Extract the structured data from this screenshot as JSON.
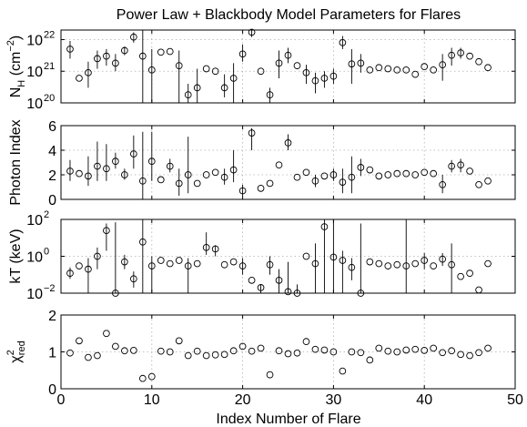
{
  "chart_data": {
    "title": "Power Law + Blackbody Model Parameters for Flares",
    "xlabel": "Index Number of Flare",
    "xlim": [
      0,
      50
    ],
    "xticks": [
      0,
      10,
      20,
      30,
      40,
      50
    ],
    "panels": [
      {
        "id": "nh",
        "type": "scatter",
        "ylabel": "N_H (cm^-2)",
        "ylabel_parts": {
          "main": "N",
          "sub": "H",
          "unit": " (cm",
          "sup": "−2",
          "close": ")"
        },
        "yscale": "log",
        "ylim": [
          1e+20,
          2e+22
        ],
        "ytick_labels": [
          {
            "value": 1e+20,
            "base": "10",
            "exp": "20"
          },
          {
            "value": 1e+21,
            "base": "10",
            "exp": "21"
          },
          {
            "value": 1e+22,
            "base": "10",
            "exp": "22"
          }
        ],
        "points": [
          {
            "x": 1,
            "y": 5e+21,
            "lo": 2.5e+21,
            "hi": 9e+21
          },
          {
            "x": 2,
            "y": 6e+20
          },
          {
            "x": 3,
            "y": 9e+20,
            "lo": 3e+20,
            "hi": 2e+21
          },
          {
            "x": 4,
            "y": 2.5e+21,
            "lo": 1.2e+21,
            "hi": 4.5e+21
          },
          {
            "x": 5,
            "y": 3e+21,
            "lo": 1.5e+21,
            "hi": 5e+21
          },
          {
            "x": 6,
            "y": 1.8e+21,
            "lo": 1e+21,
            "hi": 3.5e+21
          },
          {
            "x": 7,
            "y": 4.5e+21,
            "lo": 3.2e+21,
            "hi": 6e+21
          },
          {
            "x": 8,
            "y": 1.2e+22,
            "lo": 8e+21,
            "hi": 1.7e+22
          },
          {
            "x": 9,
            "y": 3e+21,
            "lo": 1e+20,
            "hi": 2e+22
          },
          {
            "x": 10,
            "y": 1.1e+21,
            "lo": 1e+20,
            "hi": 5e+21
          },
          {
            "x": 11,
            "y": 4e+21
          },
          {
            "x": 12,
            "y": 4.2e+21
          },
          {
            "x": 13,
            "y": 1.5e+21,
            "lo": 1e+20,
            "hi": 4.5e+21
          },
          {
            "x": 14,
            "y": 1.8e+20,
            "lo": 1e+20,
            "hi": 4e+20
          },
          {
            "x": 15,
            "y": 3e+20,
            "lo": 1e+20,
            "hi": 1.2e+21
          },
          {
            "x": 16,
            "y": 1.2e+21
          },
          {
            "x": 17,
            "y": 1e+21
          },
          {
            "x": 18,
            "y": 3e+20,
            "lo": 1.5e+20,
            "hi": 8e+20
          },
          {
            "x": 19,
            "y": 6e+20,
            "lo": 1e+20,
            "hi": 1.8e+21
          },
          {
            "x": 20,
            "y": 3.5e+21,
            "lo": 2e+21,
            "hi": 7e+21
          },
          {
            "x": 21,
            "y": 1.7e+22,
            "lo": 1.2e+22,
            "hi": 2e+22
          },
          {
            "x": 22,
            "y": 1e+21
          },
          {
            "x": 23,
            "y": 1.8e+20,
            "lo": 1e+20,
            "hi": 3e+20
          },
          {
            "x": 24,
            "y": 1.8e+21,
            "lo": 6e+20,
            "hi": 4.5e+21
          },
          {
            "x": 25,
            "y": 3.2e+21,
            "lo": 1.8e+21,
            "hi": 5.5e+21
          },
          {
            "x": 26,
            "y": 1.5e+21
          },
          {
            "x": 27,
            "y": 9e+20,
            "lo": 4e+20,
            "hi": 1.6e+21
          },
          {
            "x": 28,
            "y": 5e+20,
            "lo": 2e+20,
            "hi": 9e+20
          },
          {
            "x": 29,
            "y": 6e+20,
            "lo": 3e+20,
            "hi": 1e+21
          },
          {
            "x": 30,
            "y": 7e+20,
            "lo": 4e+20,
            "hi": 1.2e+21
          },
          {
            "x": 31,
            "y": 8e+21,
            "lo": 5e+21,
            "hi": 1.3e+22
          },
          {
            "x": 32,
            "y": 1.7e+21,
            "lo": 4e+20,
            "hi": 5e+21
          },
          {
            "x": 33,
            "y": 1.8e+21,
            "lo": 9e+20,
            "hi": 3.5e+21
          },
          {
            "x": 34,
            "y": 1.1e+21
          },
          {
            "x": 35,
            "y": 1.3e+21
          },
          {
            "x": 36,
            "y": 1.2e+21
          },
          {
            "x": 37,
            "y": 1.1e+21
          },
          {
            "x": 38,
            "y": 1.1e+21
          },
          {
            "x": 39,
            "y": 8e+20
          },
          {
            "x": 40,
            "y": 1.4e+21
          },
          {
            "x": 41,
            "y": 1.1e+21
          },
          {
            "x": 42,
            "y": 1.6e+21,
            "lo": 5e+20,
            "hi": 3.5e+21
          },
          {
            "x": 43,
            "y": 3.2e+21,
            "lo": 1.5e+21,
            "hi": 5.5e+21
          },
          {
            "x": 44,
            "y": 3.8e+21,
            "lo": 2.5e+21,
            "hi": 5.5e+21
          },
          {
            "x": 45,
            "y": 3e+21
          },
          {
            "x": 46,
            "y": 2e+21
          },
          {
            "x": 47,
            "y": 1.3e+21
          }
        ]
      },
      {
        "id": "photon_index",
        "type": "scatter",
        "ylabel": "Photon Index",
        "yscale": "linear",
        "ylim": [
          0,
          6
        ],
        "ytick_labels": [
          {
            "value": 0,
            "base": "0"
          },
          {
            "value": 2,
            "base": "2"
          },
          {
            "value": 4,
            "base": "4"
          },
          {
            "value": 6,
            "base": "6"
          }
        ],
        "points": [
          {
            "x": 1,
            "y": 2.3,
            "lo": 1.5,
            "hi": 3.2
          },
          {
            "x": 2,
            "y": 2.1
          },
          {
            "x": 3,
            "y": 1.9,
            "lo": 1.1,
            "hi": 3.5
          },
          {
            "x": 4,
            "y": 2.7,
            "lo": 1.5,
            "hi": 4.7
          },
          {
            "x": 5,
            "y": 2.5,
            "lo": 1.5,
            "hi": 4.5
          },
          {
            "x": 6,
            "y": 3.1,
            "lo": 2.5,
            "hi": 3.8
          },
          {
            "x": 7,
            "y": 2,
            "lo": 1.6,
            "hi": 2.5
          },
          {
            "x": 8,
            "y": 3.7,
            "lo": 2.5,
            "hi": 5.2
          },
          {
            "x": 9,
            "y": 1.5,
            "lo": 0,
            "hi": 5.5
          },
          {
            "x": 10,
            "y": 3.1,
            "lo": 1.5,
            "hi": 5.5
          },
          {
            "x": 11,
            "y": 1.6
          },
          {
            "x": 12,
            "y": 2.7,
            "lo": 2.2,
            "hi": 3.3
          },
          {
            "x": 13,
            "y": 1.3,
            "lo": 0.3,
            "hi": 2.5
          },
          {
            "x": 14,
            "y": 2,
            "lo": 0.5,
            "hi": 5.1
          },
          {
            "x": 15,
            "y": 1.3
          },
          {
            "x": 16,
            "y": 2
          },
          {
            "x": 17,
            "y": 2.2
          },
          {
            "x": 18,
            "y": 1.8,
            "lo": 1.2,
            "hi": 2.5
          },
          {
            "x": 19,
            "y": 2.4,
            "lo": 1.4,
            "hi": 4
          },
          {
            "x": 20,
            "y": 0.7,
            "lo": 0.3,
            "hi": 1.2
          },
          {
            "x": 21,
            "y": 5.4,
            "lo": 4,
            "hi": 5.8
          },
          {
            "x": 22,
            "y": 0.9
          },
          {
            "x": 23,
            "y": 1.3
          },
          {
            "x": 24,
            "y": 2.8
          },
          {
            "x": 25,
            "y": 4.6,
            "lo": 4,
            "hi": 5.3
          },
          {
            "x": 26,
            "y": 1.8
          },
          {
            "x": 27,
            "y": 2.2
          },
          {
            "x": 28,
            "y": 1.5,
            "lo": 1,
            "hi": 2
          },
          {
            "x": 29,
            "y": 1.9
          },
          {
            "x": 30,
            "y": 2,
            "lo": 1.5,
            "hi": 2.5
          },
          {
            "x": 31,
            "y": 1.4,
            "lo": 0.5,
            "hi": 2.5
          },
          {
            "x": 32,
            "y": 1.8,
            "lo": 0.5,
            "hi": 3.5
          },
          {
            "x": 33,
            "y": 2.6,
            "lo": 1.9,
            "hi": 3.3
          },
          {
            "x": 34,
            "y": 2.4
          },
          {
            "x": 35,
            "y": 1.9
          },
          {
            "x": 36,
            "y": 2
          },
          {
            "x": 37,
            "y": 2.1
          },
          {
            "x": 38,
            "y": 2.1
          },
          {
            "x": 39,
            "y": 2
          },
          {
            "x": 40,
            "y": 2.2
          },
          {
            "x": 41,
            "y": 2.1
          },
          {
            "x": 42,
            "y": 1.2,
            "lo": 0.5,
            "hi": 2
          },
          {
            "x": 43,
            "y": 2.7,
            "lo": 2.2,
            "hi": 3.2
          },
          {
            "x": 44,
            "y": 2.8,
            "lo": 2.2,
            "hi": 3.3
          },
          {
            "x": 45,
            "y": 2.3
          },
          {
            "x": 46,
            "y": 1.2
          },
          {
            "x": 47,
            "y": 1.5
          }
        ]
      },
      {
        "id": "kt",
        "type": "scatter",
        "ylabel": "kT (keV)",
        "yscale": "log",
        "ylim": [
          0.01,
          100
        ],
        "ytick_labels": [
          {
            "value": 0.01,
            "base": "10",
            "exp": "−2"
          },
          {
            "value": 1,
            "base": "10",
            "exp": "0"
          },
          {
            "value": 100,
            "base": "10",
            "exp": "2"
          }
        ],
        "points": [
          {
            "x": 1,
            "y": 0.12,
            "lo": 0.06,
            "hi": 0.25
          },
          {
            "x": 2,
            "y": 0.3
          },
          {
            "x": 3,
            "y": 0.2,
            "lo": 0.01,
            "hi": 0.8
          },
          {
            "x": 4,
            "y": 1,
            "lo": 0.2,
            "hi": 3
          },
          {
            "x": 5,
            "y": 25,
            "lo": 2,
            "hi": 60
          },
          {
            "x": 6,
            "y": 0.01,
            "lo": 0.01,
            "hi": 70
          },
          {
            "x": 7,
            "y": 0.5,
            "lo": 0.2,
            "hi": 1.2
          },
          {
            "x": 8,
            "y": 0.06,
            "lo": 0.02,
            "hi": 0.15
          },
          {
            "x": 9,
            "y": 6,
            "lo": 0.01,
            "hi": 100
          },
          {
            "x": 10,
            "y": 0.3,
            "lo": 0.01,
            "hi": 1
          },
          {
            "x": 11,
            "y": 0.6
          },
          {
            "x": 12,
            "y": 0.4
          },
          {
            "x": 13,
            "y": 0.6
          },
          {
            "x": 14,
            "y": 0.3,
            "lo": 0.01,
            "hi": 0.8
          },
          {
            "x": 15,
            "y": 0.4
          },
          {
            "x": 16,
            "y": 3,
            "lo": 1.2,
            "hi": 20
          },
          {
            "x": 17,
            "y": 2.5,
            "lo": 1,
            "hi": 4
          },
          {
            "x": 18,
            "y": 0.35
          },
          {
            "x": 19,
            "y": 0.5
          },
          {
            "x": 20,
            "y": 0.3,
            "lo": 0.1,
            "hi": 0.8
          },
          {
            "x": 21,
            "y": 0.05
          },
          {
            "x": 22,
            "y": 0.02,
            "lo": 0.01,
            "hi": 0.03
          },
          {
            "x": 23,
            "y": 0.35,
            "lo": 0.1,
            "hi": 1
          },
          {
            "x": 24,
            "y": 0.05,
            "lo": 0.01,
            "hi": 0.2
          },
          {
            "x": 25,
            "y": 0.012,
            "lo": 0.01,
            "hi": 0.5
          },
          {
            "x": 26,
            "y": 0.01,
            "lo": 0.01,
            "hi": 0.03
          },
          {
            "x": 27,
            "y": 1
          },
          {
            "x": 28,
            "y": 0.4,
            "lo": 0.01,
            "hi": 5
          },
          {
            "x": 29,
            "y": 40,
            "lo": 0.01,
            "hi": 100
          },
          {
            "x": 30,
            "y": 0.9,
            "lo": 0.01,
            "hi": 100
          },
          {
            "x": 31,
            "y": 0.6,
            "lo": 0.01,
            "hi": 2
          },
          {
            "x": 32,
            "y": 0.25,
            "lo": 0.05,
            "hi": 0.8
          },
          {
            "x": 33,
            "y": 0.01,
            "lo": 0.01,
            "hi": 60
          },
          {
            "x": 34,
            "y": 0.5
          },
          {
            "x": 35,
            "y": 0.4
          },
          {
            "x": 36,
            "y": 0.3
          },
          {
            "x": 37,
            "y": 0.35
          },
          {
            "x": 38,
            "y": 0.3,
            "lo": 0.01,
            "hi": 100
          },
          {
            "x": 39,
            "y": 0.4
          },
          {
            "x": 40,
            "y": 0.6,
            "lo": 0.2,
            "hi": 1.5
          },
          {
            "x": 41,
            "y": 0.3
          },
          {
            "x": 42,
            "y": 0.7,
            "lo": 0.3,
            "hi": 1.5
          },
          {
            "x": 43,
            "y": 0.35,
            "lo": 0.01,
            "hi": 5
          },
          {
            "x": 44,
            "y": 0.08
          },
          {
            "x": 45,
            "y": 0.12
          },
          {
            "x": 46,
            "y": 0.015
          },
          {
            "x": 47,
            "y": 0.4
          }
        ]
      },
      {
        "id": "chi2",
        "type": "scatter",
        "ylabel": "χ²_red",
        "ylabel_parts": {
          "main": "χ",
          "sup": "2",
          "sub": "red"
        },
        "yscale": "linear",
        "ylim": [
          0,
          2
        ],
        "ytick_labels": [
          {
            "value": 0,
            "base": "0"
          },
          {
            "value": 1,
            "base": "1"
          },
          {
            "value": 2,
            "base": "2"
          }
        ],
        "points": [
          {
            "x": 1,
            "y": 0.97
          },
          {
            "x": 2,
            "y": 1.3
          },
          {
            "x": 3,
            "y": 0.85
          },
          {
            "x": 4,
            "y": 0.9
          },
          {
            "x": 5,
            "y": 1.5
          },
          {
            "x": 6,
            "y": 1.15
          },
          {
            "x": 7,
            "y": 1.03
          },
          {
            "x": 8,
            "y": 1.04
          },
          {
            "x": 9,
            "y": 0.28
          },
          {
            "x": 10,
            "y": 0.33
          },
          {
            "x": 11,
            "y": 1.02
          },
          {
            "x": 12,
            "y": 1
          },
          {
            "x": 13,
            "y": 1.3
          },
          {
            "x": 14,
            "y": 0.9
          },
          {
            "x": 15,
            "y": 1.02
          },
          {
            "x": 16,
            "y": 0.9
          },
          {
            "x": 17,
            "y": 0.92
          },
          {
            "x": 18,
            "y": 0.93
          },
          {
            "x": 19,
            "y": 1.03
          },
          {
            "x": 20,
            "y": 1.15
          },
          {
            "x": 21,
            "y": 1.02
          },
          {
            "x": 22,
            "y": 1.1
          },
          {
            "x": 23,
            "y": 0.38
          },
          {
            "x": 24,
            "y": 1.03
          },
          {
            "x": 25,
            "y": 0.95
          },
          {
            "x": 26,
            "y": 0.97
          },
          {
            "x": 27,
            "y": 1.28
          },
          {
            "x": 28,
            "y": 1.07
          },
          {
            "x": 29,
            "y": 1.05
          },
          {
            "x": 30,
            "y": 1
          },
          {
            "x": 31,
            "y": 0.48
          },
          {
            "x": 32,
            "y": 1
          },
          {
            "x": 33,
            "y": 0.98
          },
          {
            "x": 34,
            "y": 0.78
          },
          {
            "x": 35,
            "y": 1.1
          },
          {
            "x": 36,
            "y": 1.02
          },
          {
            "x": 37,
            "y": 1
          },
          {
            "x": 38,
            "y": 1.05
          },
          {
            "x": 39,
            "y": 1.07
          },
          {
            "x": 40,
            "y": 1.04
          },
          {
            "x": 41,
            "y": 1.1
          },
          {
            "x": 42,
            "y": 0.98
          },
          {
            "x": 43,
            "y": 1.03
          },
          {
            "x": 44,
            "y": 0.93
          },
          {
            "x": 45,
            "y": 0.9
          },
          {
            "x": 46,
            "y": 0.98
          },
          {
            "x": 47,
            "y": 1.1
          }
        ]
      }
    ]
  }
}
